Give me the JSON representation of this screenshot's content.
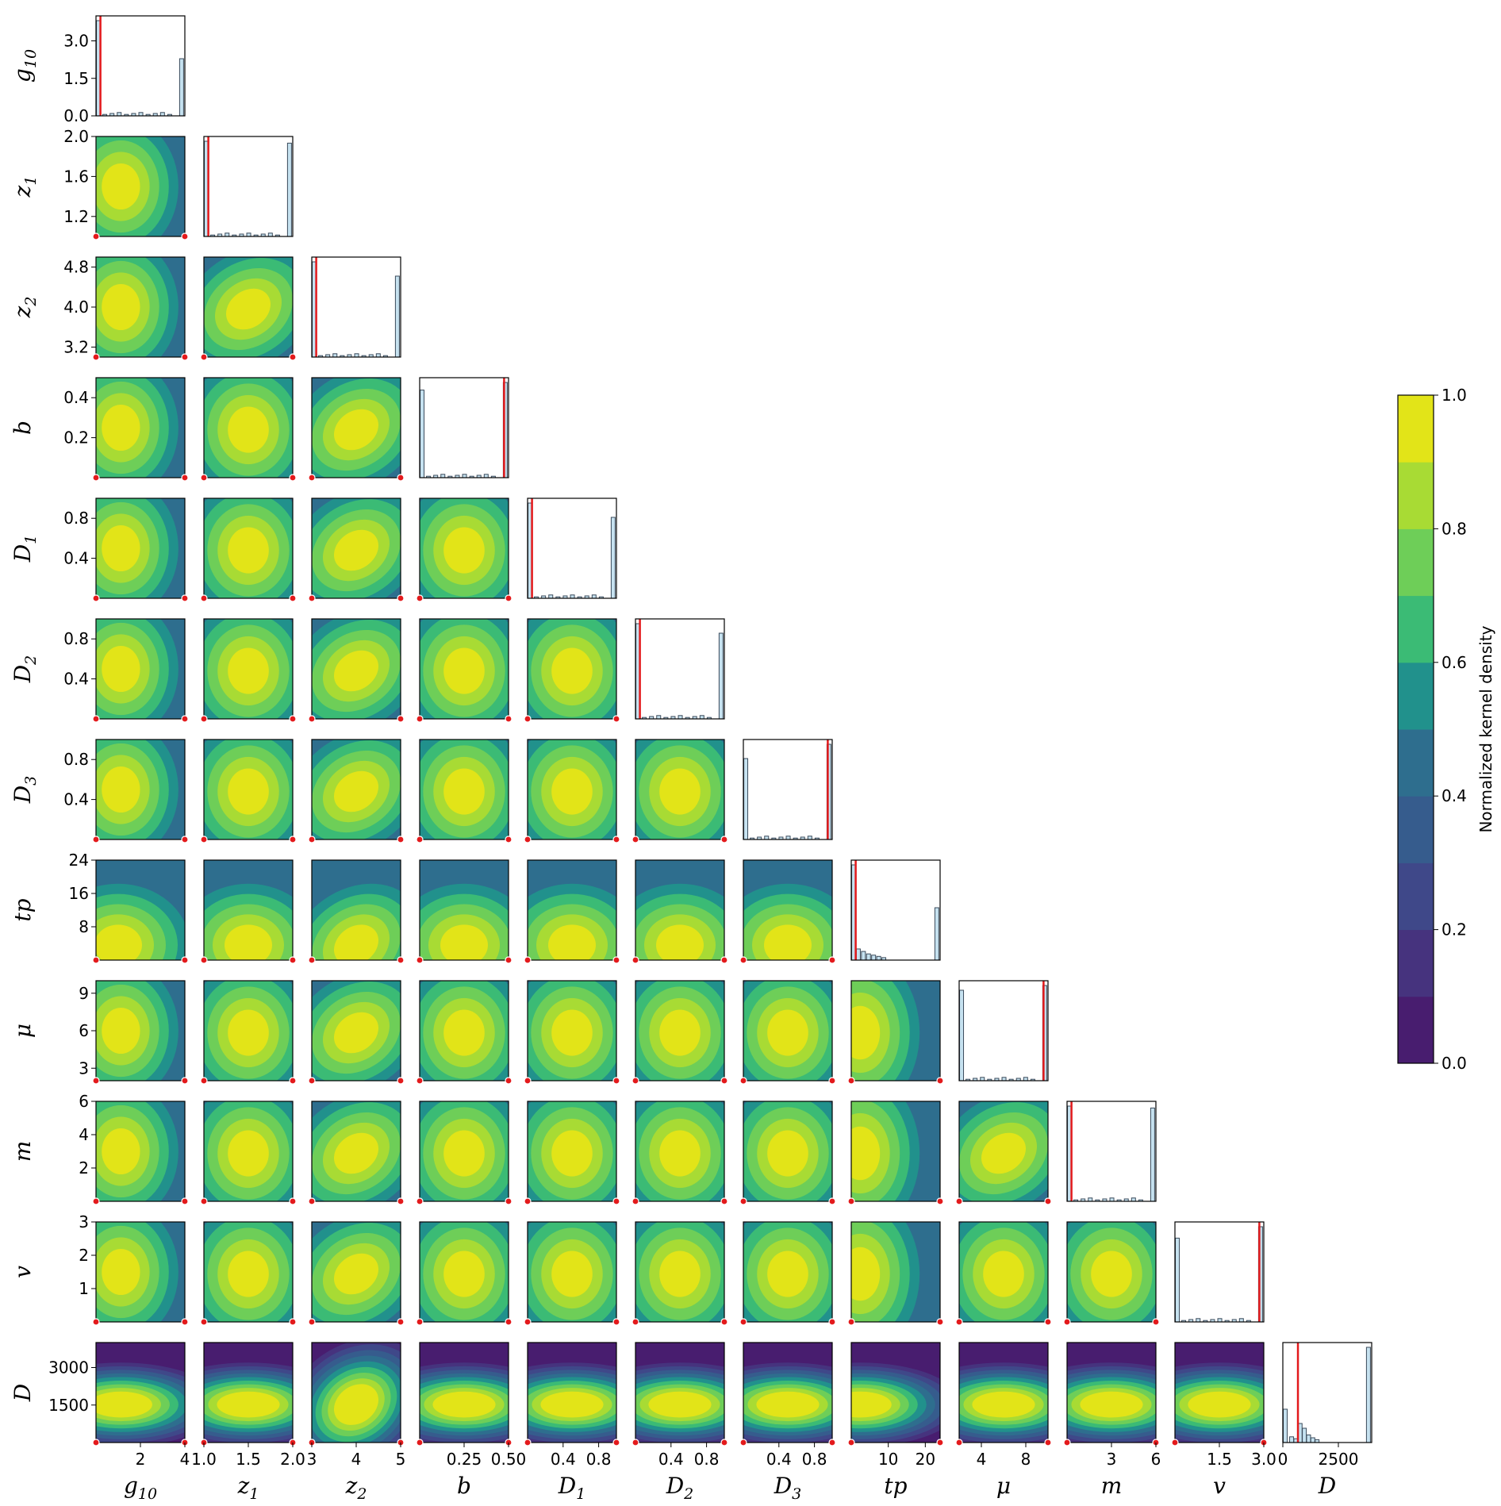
{
  "chart_data": {
    "type": "corner",
    "parameters": [
      {
        "key": "g10",
        "label": "g",
        "sub": "10",
        "range": [
          0,
          4
        ],
        "xticks": [
          "2",
          "4"
        ],
        "yticks": [
          "0.0",
          "1.5",
          "3.0"
        ]
      },
      {
        "key": "z1",
        "label": "z",
        "sub": "1",
        "range": [
          1.0,
          2.0
        ],
        "xticks": [
          "1.0",
          "1.5",
          "2.0"
        ],
        "yticks": [
          "1.2",
          "1.6",
          "2.0"
        ]
      },
      {
        "key": "z2",
        "label": "z",
        "sub": "2",
        "range": [
          3,
          5
        ],
        "xticks": [
          "3",
          "4",
          "5"
        ],
        "yticks": [
          "3.2",
          "4.0",
          "4.8"
        ]
      },
      {
        "key": "b",
        "label": "b",
        "sub": "",
        "range": [
          0,
          0.5
        ],
        "xticks": [
          "0.25",
          "0.50"
        ],
        "yticks": [
          "0.2",
          "0.4"
        ]
      },
      {
        "key": "D1",
        "label": "D",
        "sub": "1",
        "range": [
          0,
          1
        ],
        "xticks": [
          "0.4",
          "0.8"
        ],
        "yticks": [
          "0.4",
          "0.8"
        ]
      },
      {
        "key": "D2",
        "label": "D",
        "sub": "2",
        "range": [
          0,
          1
        ],
        "xticks": [
          "0.4",
          "0.8"
        ],
        "yticks": [
          "0.4",
          "0.8"
        ]
      },
      {
        "key": "D3",
        "label": "D",
        "sub": "3",
        "range": [
          0,
          1
        ],
        "xticks": [
          "0.4",
          "0.8"
        ],
        "yticks": [
          "0.4",
          "0.8"
        ]
      },
      {
        "key": "tp",
        "label": "tp",
        "sub": "",
        "range": [
          0,
          24
        ],
        "xticks": [
          "10",
          "20"
        ],
        "yticks": [
          "8",
          "16",
          "24"
        ]
      },
      {
        "key": "mu",
        "label": "μ",
        "sub": "",
        "range": [
          2,
          10
        ],
        "xticks": [
          "4",
          "8"
        ],
        "yticks": [
          "3",
          "6",
          "9"
        ]
      },
      {
        "key": "m",
        "label": "m",
        "sub": "",
        "range": [
          0,
          6
        ],
        "xticks": [
          "3",
          "6"
        ],
        "yticks": [
          "2",
          "4",
          "6"
        ]
      },
      {
        "key": "v",
        "label": "v",
        "sub": "",
        "range": [
          0,
          3
        ],
        "xticks": [
          "1.5",
          "3.0"
        ],
        "yticks": [
          "1",
          "2",
          "3"
        ]
      },
      {
        "key": "D",
        "label": "D",
        "sub": "",
        "range": [
          0,
          4000
        ],
        "xticks": [
          "0",
          "2500"
        ],
        "yticks": [
          "1500",
          "3000"
        ]
      }
    ],
    "colorbar": {
      "label": "Normalized kernel density",
      "ticks": [
        "0.0",
        "0.2",
        "0.4",
        "0.6",
        "0.8",
        "1.0"
      ],
      "levels": 10,
      "colormap": "viridis"
    },
    "marginal_histograms": [
      {
        "param": "g10",
        "red_line": 0.05,
        "left_peak": 1.0,
        "right_peak": 0.6
      },
      {
        "param": "z1",
        "red_line": 0.05,
        "left_peak": 1.0,
        "right_peak": 0.98
      },
      {
        "param": "z2",
        "red_line": 0.05,
        "left_peak": 1.0,
        "right_peak": 0.85
      },
      {
        "param": "b",
        "red_line": 0.95,
        "left_peak": 0.92,
        "right_peak": 1.0
      },
      {
        "param": "D1",
        "red_line": 0.05,
        "left_peak": 1.0,
        "right_peak": 0.85
      },
      {
        "param": "D2",
        "red_line": 0.05,
        "left_peak": 1.0,
        "right_peak": 0.9
      },
      {
        "param": "D3",
        "red_line": 0.95,
        "left_peak": 0.85,
        "right_peak": 1.0
      },
      {
        "param": "tp",
        "red_line": 0.05,
        "left_peak": 1.0,
        "right_peak": 0.55
      },
      {
        "param": "mu",
        "red_line": 0.95,
        "left_peak": 0.95,
        "right_peak": 1.0
      },
      {
        "param": "m",
        "red_line": 0.05,
        "left_peak": 1.0,
        "right_peak": 0.98
      },
      {
        "param": "v",
        "red_line": 0.95,
        "left_peak": 0.88,
        "right_peak": 1.0
      },
      {
        "param": "D",
        "red_line": 0.17,
        "left_peak": 0.35,
        "right_peak": 1.0
      }
    ],
    "colors": {
      "red_line": "#e31a1c",
      "hist_face": "#c6e2f0",
      "hist_edge": "#3b4b5b",
      "frame": "#000000"
    }
  }
}
